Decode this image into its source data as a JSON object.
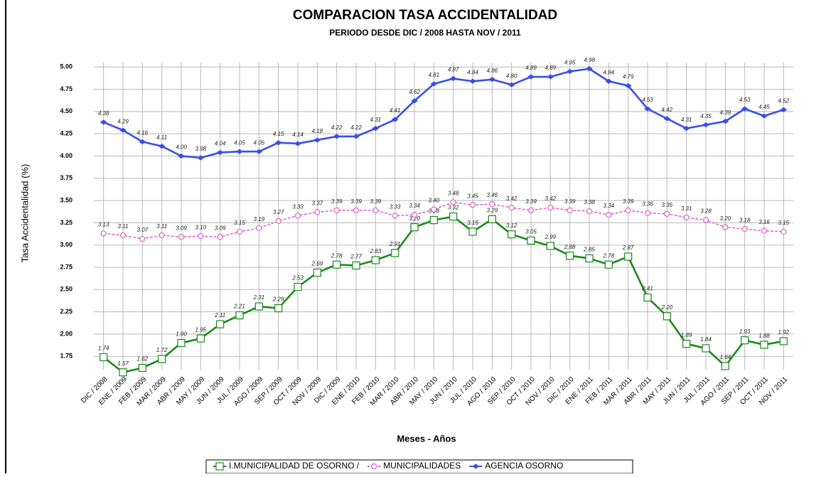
{
  "chart_data": {
    "type": "line",
    "title": "COMPARACION TASA ACCIDENTALIDAD",
    "subtitle": "PERIODO DESDE DIC / 2008 HASTA NOV / 2011",
    "x_label": "Meses - Años",
    "y_label": "Tasa Accidentalidad (%)",
    "categories": [
      "DIC / 2008",
      "ENE / 2009",
      "FEB / 2009",
      "MAR / 2009",
      "ABR / 2009",
      "MAY / 2009",
      "JUN / 2009",
      "JUL / 2009",
      "AGO / 2009",
      "SEP / 2009",
      "OCT / 2009",
      "NOV / 2009",
      "DIC / 2009",
      "ENE / 2010",
      "FEB / 2010",
      "MAR / 2010",
      "ABR / 2010",
      "MAY / 2010",
      "JUN / 2010",
      "JUL / 2010",
      "AGO / 2010",
      "SEP / 2010",
      "OCT / 2010",
      "NOV / 2010",
      "DIC / 2010",
      "ENE / 2011",
      "FEB / 2011",
      "MAR / 2011",
      "ABR / 2011",
      "MAY / 2011",
      "JUN / 2011",
      "JUL / 2011",
      "AGO / 2011",
      "SEP / 2011",
      "OCT / 2011",
      "NOV / 2011"
    ],
    "series": [
      {
        "name": "I.MUNICIPALIDAD DE OSORNO /",
        "color": "#1a8a1a",
        "marker": "square",
        "values": [
          1.74,
          1.57,
          1.62,
          1.72,
          1.9,
          1.95,
          2.11,
          2.21,
          2.31,
          2.29,
          2.53,
          2.69,
          2.78,
          2.77,
          2.83,
          2.91,
          3.2,
          3.28,
          3.32,
          3.15,
          3.29,
          3.12,
          3.05,
          2.99,
          2.88,
          2.85,
          2.78,
          2.87,
          2.41,
          2.2,
          1.89,
          1.84,
          1.64,
          1.93,
          1.88,
          1.92
        ],
        "value_labels": [
          "1.74",
          "1.57",
          "1.62",
          "1.72",
          "1.90",
          "1.95",
          "2.11",
          "2.21",
          "2.31",
          "2.29",
          "2.53",
          "2.69",
          "2.78",
          "2.77",
          "2.83",
          "2.91",
          "3.20",
          "3.28",
          "3.32",
          "3.15",
          "3.29",
          "3.12",
          "3.05",
          "2.99",
          "2.88",
          "2.85",
          "2.78",
          "2.87",
          "2.41",
          "2.20",
          "1.89",
          "1.84",
          "1.64",
          "1.93",
          "1.88",
          "1.92"
        ]
      },
      {
        "name": "MUNICIPALIDADES",
        "color": "#e060d0",
        "marker": "circle",
        "dashed": true,
        "values": [
          3.13,
          3.11,
          3.07,
          3.11,
          3.09,
          3.1,
          3.09,
          3.15,
          3.19,
          3.27,
          3.33,
          3.37,
          3.39,
          3.39,
          3.39,
          3.33,
          3.34,
          3.4,
          3.48,
          3.45,
          3.46,
          3.42,
          3.39,
          3.42,
          3.39,
          3.38,
          3.34,
          3.39,
          3.36,
          3.35,
          3.31,
          3.28,
          3.2,
          3.18,
          3.16,
          3.15
        ],
        "value_labels": [
          "3.13",
          "3.11",
          "3.07",
          "3.11",
          "3.09",
          "3.10",
          "3.09",
          "3.15",
          "3.19",
          "3.27",
          "3.33",
          "3.37",
          "3.39",
          "3.39",
          "3.39",
          "3.33",
          "3.34",
          "3.40",
          "3.48",
          "3.45",
          "3.46",
          "3.42",
          "3.39",
          "3.42",
          "3.39",
          "3.38",
          "3.34",
          "3.39",
          "3.36",
          "3.35",
          "3.31",
          "3.28",
          "3.20",
          "3.18",
          "3.16",
          "3.15"
        ]
      },
      {
        "name": "AGENCIA OSORNO",
        "color": "#3a4fe6",
        "marker": "diamond",
        "values": [
          4.38,
          4.29,
          4.16,
          4.11,
          4.0,
          3.98,
          4.04,
          4.05,
          4.05,
          4.15,
          4.14,
          4.18,
          4.22,
          4.22,
          4.31,
          4.41,
          4.62,
          4.81,
          4.87,
          4.84,
          4.86,
          4.8,
          4.89,
          4.89,
          4.95,
          4.98,
          4.84,
          4.79,
          4.53,
          4.42,
          4.31,
          4.35,
          4.39,
          4.53,
          4.45,
          4.52
        ],
        "value_labels": [
          "4.38",
          "4.29",
          "4.16",
          "4.11",
          "4.00",
          "3.98",
          "4.04",
          "4.05",
          "4.05",
          "4.15",
          "4.14",
          "4.18",
          "4.22",
          "4.22",
          "4.31",
          "4.41",
          "4.62",
          "4.81",
          "4.87",
          "4.84",
          "4.86",
          "4.80",
          "4.89",
          "4.89",
          "4.95",
          "4.98",
          "4.84",
          "4.79",
          "4.53",
          "4.42",
          "4.31",
          "4.35",
          "4.39",
          "4.53",
          "4.45",
          "4.52"
        ]
      }
    ],
    "ylim": [
      1.6,
      5.05
    ],
    "yticks": [
      1.75,
      {
        "value": 2,
        "label": "2.00"
      },
      2.25,
      {
        "value": 2.5,
        "label": "2.50"
      },
      2.75,
      {
        "value": 3,
        "label": "3.00"
      },
      3.25,
      {
        "value": 3.5,
        "label": "3.50"
      },
      3.75,
      {
        "value": 4,
        "label": "4.00"
      },
      4.25,
      {
        "value": 4.5,
        "label": "4.50"
      },
      4.75,
      {
        "value": 5,
        "label": "5.00"
      }
    ],
    "grid": true,
    "legend": "bottom"
  }
}
